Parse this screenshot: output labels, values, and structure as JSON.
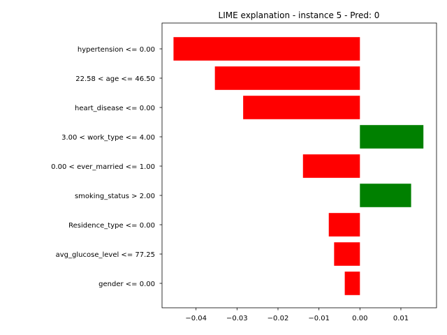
{
  "chart_data": {
    "type": "bar",
    "orientation": "horizontal",
    "title": "LIME explanation - instance 5 - Pred: 0",
    "xlabel": "",
    "ylabel": "",
    "categories": [
      "hypertension <= 0.00",
      "22.58 < age <= 46.50",
      "heart_disease <= 0.00",
      "3.00 < work_type <= 4.00",
      "0.00 < ever_married <= 1.00",
      "smoking_status > 2.00",
      "Residence_type <= 0.00",
      "avg_glucose_level <= 77.25",
      "gender <= 0.00"
    ],
    "values": [
      -0.0455,
      -0.0354,
      -0.0285,
      0.0155,
      -0.0139,
      0.0125,
      -0.0076,
      -0.0063,
      -0.0037
    ],
    "xlim": [
      -0.0483,
      0.0187
    ],
    "x_ticks": [
      -0.04,
      -0.03,
      -0.02,
      -0.01,
      0.0,
      0.01
    ],
    "x_tick_labels": [
      "−0.04",
      "−0.03",
      "−0.02",
      "−0.01",
      "0.00",
      "0.01"
    ],
    "grid": false,
    "colors": {
      "positive": "#008000",
      "negative": "#ff0000",
      "axis": "#000000"
    }
  }
}
